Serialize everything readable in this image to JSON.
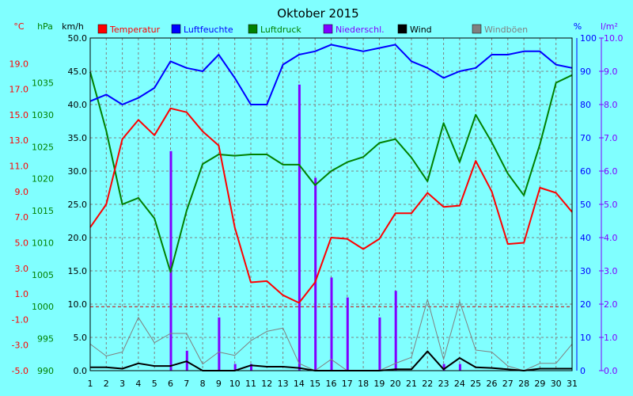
{
  "chart_data": {
    "type": "line",
    "title": "Oktober 2015",
    "axes": {
      "temp": {
        "unit": "°C",
        "min": -5,
        "max": 21,
        "ticks": [
          "19.0",
          "17.0",
          "15.0",
          "13.0",
          "11.0",
          "9.0",
          "7.0",
          "5.0",
          "3.0",
          "1.0",
          "-1.0",
          "-3.0",
          "-5.0"
        ],
        "tick_values": [
          19,
          17,
          15,
          13,
          11,
          9,
          7,
          5,
          3,
          1,
          -1,
          -3,
          -5
        ],
        "color": "#ff0000"
      },
      "press": {
        "unit": "hPa",
        "min": 990,
        "max": 1042,
        "ticks": [
          "1035",
          "1030",
          "1025",
          "1020",
          "1015",
          "1010",
          "1005",
          "1000",
          "995",
          "990"
        ],
        "tick_values": [
          1035,
          1030,
          1025,
          1020,
          1015,
          1010,
          1005,
          1000,
          995,
          990
        ],
        "color": "#008000"
      },
      "wind": {
        "unit": "km/h",
        "min": 0,
        "max": 50,
        "ticks": [
          "50.0",
          "45.0",
          "40.0",
          "35.0",
          "30.0",
          "25.0",
          "20.0",
          "15.0",
          "10.0",
          "5.0",
          "0.0"
        ],
        "tick_values": [
          50,
          45,
          40,
          35,
          30,
          25,
          20,
          15,
          10,
          5,
          0
        ],
        "color": "#000000"
      },
      "hum": {
        "unit": "%",
        "min": 0,
        "max": 100,
        "ticks": [
          "100",
          "90",
          "80",
          "70",
          "60",
          "50",
          "40",
          "30",
          "20",
          "10",
          "0"
        ],
        "tick_values": [
          100,
          90,
          80,
          70,
          60,
          50,
          40,
          30,
          20,
          10,
          0
        ],
        "color": "#0000ff"
      },
      "rain": {
        "unit": "l/m²",
        "min": 0,
        "max": 10,
        "ticks": [
          "10.0",
          "9.0",
          "8.0",
          "7.0",
          "6.0",
          "5.0",
          "4.0",
          "3.0",
          "2.0",
          "1.0",
          "0.0"
        ],
        "tick_values": [
          10,
          9,
          8,
          7,
          6,
          5,
          4,
          3,
          2,
          1,
          0
        ],
        "color": "#8000ff"
      }
    },
    "categories": [
      "1",
      "2",
      "3",
      "4",
      "5",
      "6",
      "7",
      "8",
      "9",
      "10",
      "11",
      "12",
      "13",
      "14",
      "15",
      "16",
      "17",
      "18",
      "19",
      "20",
      "21",
      "22",
      "23",
      "24",
      "25",
      "26",
      "27",
      "28",
      "29",
      "30",
      "31"
    ],
    "zero_line": {
      "axis": "temp",
      "value": 0,
      "color": "#cc0000"
    },
    "grid": true,
    "legend": [
      {
        "name": "Temperatur",
        "color": "#ff0000"
      },
      {
        "name": "Luftfeuchte",
        "color": "#0000ff"
      },
      {
        "name": "Luftdruck",
        "color": "#008000"
      },
      {
        "name": "Niederschl.",
        "color": "#8000ff"
      },
      {
        "name": "Wind",
        "color": "#000000"
      },
      {
        "name": "Windböen",
        "color": "#808080"
      }
    ],
    "series": [
      {
        "name": "Luftdruck",
        "kind": "line",
        "axis": "press",
        "color": "#008000",
        "values": [
          1036.7,
          1027.5,
          1016.0,
          1017.0,
          1013.8,
          1005.4,
          1015.0,
          1022.3,
          1023.8,
          1023.6,
          1023.8,
          1023.8,
          1022.2,
          1022.2,
          1019.0,
          1021.2,
          1022.6,
          1023.4,
          1025.6,
          1026.2,
          1023.3,
          1019.6,
          1028.7,
          1022.6,
          1030.0,
          1025.7,
          1020.8,
          1017.4,
          1025.4,
          1035.0,
          1036.2
        ]
      },
      {
        "name": "Luftfeuchte",
        "kind": "line",
        "axis": "hum",
        "color": "#0000ff",
        "values": [
          81,
          83,
          80,
          82,
          85,
          93,
          91,
          90,
          95,
          88,
          80,
          80,
          92,
          95,
          96,
          98,
          97,
          96,
          97,
          98,
          93,
          91,
          88,
          90,
          91,
          95,
          95,
          96,
          96,
          92,
          91
        ]
      },
      {
        "name": "Temperatur",
        "kind": "line",
        "axis": "temp",
        "color": "#ff0000",
        "values": [
          6.2,
          8.0,
          13.1,
          14.6,
          13.4,
          15.5,
          15.2,
          13.7,
          12.6,
          6.2,
          1.9,
          2.0,
          0.9,
          0.3,
          1.9,
          5.4,
          5.3,
          4.5,
          5.3,
          7.3,
          7.3,
          8.9,
          7.8,
          7.9,
          11.4,
          9.0,
          4.9,
          5.0,
          9.3,
          8.9,
          7.4
        ]
      },
      {
        "name": "Windböen",
        "kind": "line",
        "axis": "wind",
        "color": "#808080",
        "values": [
          4.0,
          2.2,
          2.8,
          8.0,
          4.2,
          5.6,
          5.6,
          1.0,
          2.8,
          2.3,
          4.5,
          5.9,
          6.4,
          1.1,
          0.0,
          1.7,
          0.0,
          0.0,
          0.0,
          1.1,
          2.0,
          10.7,
          1.7,
          10.4,
          3.1,
          2.8,
          0.7,
          0.0,
          1.1,
          1.1,
          4.0
        ]
      },
      {
        "name": "Wind",
        "kind": "line",
        "axis": "wind",
        "color": "#000000",
        "values": [
          0.5,
          0.5,
          0.3,
          1.1,
          0.7,
          0.7,
          1.4,
          0.0,
          0.0,
          0.0,
          0.8,
          0.6,
          0.6,
          0.4,
          0.0,
          0.0,
          0.0,
          0.0,
          0.0,
          0.2,
          0.2,
          2.9,
          0.2,
          1.9,
          0.5,
          0.4,
          0.2,
          0.0,
          0.3,
          0.3,
          0.3
        ]
      },
      {
        "name": "Niederschl.",
        "kind": "bar",
        "axis": "rain",
        "color": "#8000ff",
        "values": [
          0,
          0,
          0,
          0,
          0,
          6.6,
          0.6,
          0,
          1.6,
          0.2,
          0.2,
          0,
          0,
          8.6,
          5.8,
          2.8,
          2.2,
          0,
          1.6,
          2.4,
          0,
          0,
          0.2,
          0.2,
          0,
          0,
          0,
          0,
          0,
          0,
          0
        ]
      }
    ]
  }
}
